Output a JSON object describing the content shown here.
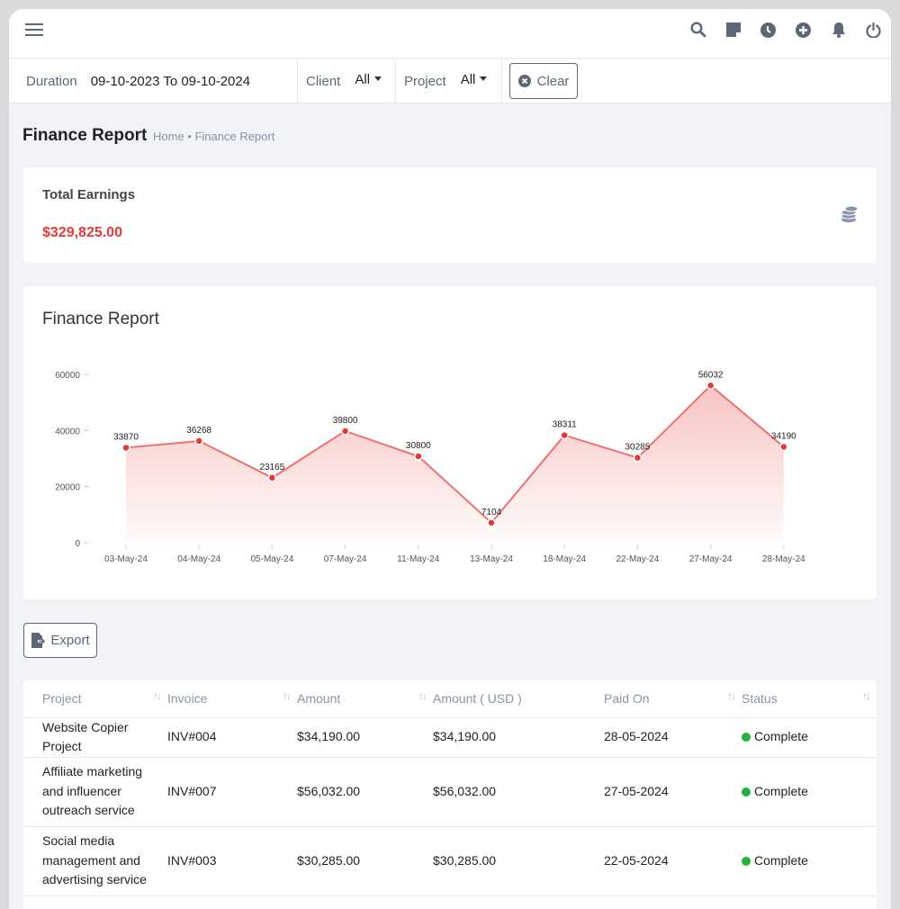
{
  "header": {
    "icons": [
      "menu-icon",
      "search-icon",
      "sticky-note-icon",
      "clock-icon",
      "plus-circle-icon",
      "bell-icon",
      "power-icon"
    ]
  },
  "filters": {
    "duration_label": "Duration",
    "duration_value": "09-10-2023 To 09-10-2024",
    "client_label": "Client",
    "client_value": "All",
    "project_label": "Project",
    "project_value": "All",
    "clear_label": "Clear"
  },
  "page": {
    "title": "Finance Report",
    "breadcrumb": "Home • Finance Report"
  },
  "earnings": {
    "label": "Total Earnings",
    "value": "$329,825.00",
    "value_color": "#e53935"
  },
  "chart_data": {
    "type": "area",
    "title": "Finance Report",
    "categories": [
      "03-May-24",
      "04-May-24",
      "05-May-24",
      "07-May-24",
      "11-May-24",
      "13-May-24",
      "18-May-24",
      "22-May-24",
      "27-May-24",
      "28-May-24"
    ],
    "values": [
      33870,
      36268,
      23165,
      39800,
      30800,
      7104,
      38311,
      30285,
      56032,
      34190
    ],
    "ylim": [
      0,
      60000
    ],
    "yticks": [
      "0",
      "20000",
      "40000",
      "60000"
    ],
    "color": "#e53935",
    "grid": false
  },
  "export_label": "Export",
  "table": {
    "columns": [
      "Project",
      "Invoice",
      "Amount",
      "Amount ( USD )",
      "Paid On",
      "Status"
    ],
    "rows": [
      {
        "project": "Website Copier Project",
        "invoice": "INV#004",
        "amount": "$34,190.00",
        "amount_usd": "$34,190.00",
        "paid_on": "28-05-2024",
        "status": "Complete"
      },
      {
        "project": "Affiliate marketing and influencer outreach service",
        "invoice": "INV#007",
        "amount": "$56,032.00",
        "amount_usd": "$56,032.00",
        "paid_on": "27-05-2024",
        "status": "Complete"
      },
      {
        "project": "Social media management and advertising service",
        "invoice": "INV#003",
        "amount": "$30,285.00",
        "amount_usd": "$30,285.00",
        "paid_on": "22-05-2024",
        "status": "Complete"
      }
    ]
  }
}
